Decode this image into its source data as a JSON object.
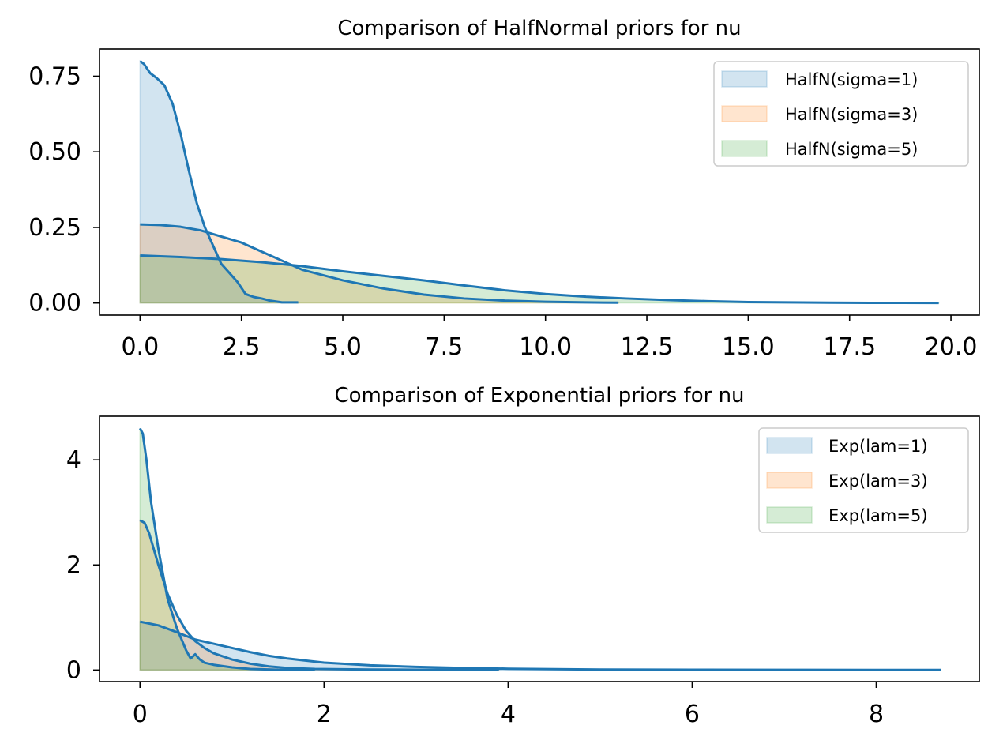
{
  "chart_data": [
    {
      "type": "area",
      "title": "Comparison of HalfNormal priors for nu",
      "xlabel": "",
      "ylabel": "",
      "xlim": [
        -1.0,
        20.7
      ],
      "ylim": [
        -0.04,
        0.84
      ],
      "xticks": [
        0,
        2.5,
        5,
        7.5,
        10,
        12.5,
        15,
        17.5,
        20
      ],
      "xtick_labels": [
        "0.0",
        "2.5",
        "5.0",
        "7.5",
        "10.0",
        "12.5",
        "15.0",
        "17.5",
        "20.0"
      ],
      "yticks": [
        0,
        0.25,
        0.5,
        0.75
      ],
      "ytick_labels": [
        "0.00",
        "0.25",
        "0.50",
        "0.75"
      ],
      "legend_position": "upper right",
      "line_color": "#1f77b4",
      "series": [
        {
          "name": "HalfN(sigma=1)",
          "fill": "#1f77b4",
          "x": [
            0,
            0.1,
            0.25,
            0.4,
            0.6,
            0.8,
            1.0,
            1.2,
            1.4,
            1.6,
            1.8,
            2.0,
            2.2,
            2.4,
            2.6,
            2.8,
            3.0,
            3.2,
            3.5,
            3.9
          ],
          "y": [
            0.8,
            0.79,
            0.76,
            0.745,
            0.72,
            0.66,
            0.56,
            0.44,
            0.33,
            0.25,
            0.19,
            0.13,
            0.1,
            0.07,
            0.03,
            0.02,
            0.015,
            0.008,
            0.002,
            0.002
          ]
        },
        {
          "name": "HalfN(sigma=3)",
          "fill": "#ff7f0e",
          "x": [
            0,
            0.5,
            1.0,
            1.5,
            2.0,
            2.5,
            3.0,
            3.5,
            4.0,
            5.0,
            6.0,
            7.0,
            8.0,
            9.0,
            10.0,
            11.0,
            11.8
          ],
          "y": [
            0.26,
            0.258,
            0.252,
            0.24,
            0.22,
            0.2,
            0.17,
            0.14,
            0.11,
            0.075,
            0.048,
            0.028,
            0.015,
            0.008,
            0.004,
            0.002,
            0.001
          ]
        },
        {
          "name": "HalfN(sigma=5)",
          "fill": "#2ca02c",
          "x": [
            0,
            1.0,
            2.0,
            3.0,
            4.0,
            5.0,
            6.0,
            7.0,
            8.0,
            9.0,
            10.0,
            11.0,
            12.0,
            13.0,
            14.0,
            15.0,
            16.0,
            17.0,
            18.0,
            19.7
          ],
          "y": [
            0.157,
            0.152,
            0.145,
            0.135,
            0.122,
            0.105,
            0.09,
            0.075,
            0.058,
            0.042,
            0.03,
            0.021,
            0.015,
            0.01,
            0.006,
            0.003,
            0.002,
            0.001,
            0.0005,
            0.0002
          ]
        }
      ]
    },
    {
      "type": "area",
      "title": "Comparison of Exponential priors for nu",
      "xlabel": "",
      "ylabel": "",
      "xlim": [
        -0.44,
        9.12
      ],
      "ylim": [
        -0.22,
        4.83
      ],
      "xticks": [
        0,
        2,
        4,
        6,
        8
      ],
      "xtick_labels": [
        "0",
        "2",
        "4",
        "6",
        "8"
      ],
      "yticks": [
        0,
        2,
        4
      ],
      "ytick_labels": [
        "0",
        "2",
        "4"
      ],
      "legend_position": "upper right",
      "line_color": "#1f77b4",
      "series": [
        {
          "name": "Exp(lam=1)",
          "fill": "#1f77b4",
          "x": [
            0,
            0.2,
            0.4,
            0.6,
            0.8,
            1.0,
            1.2,
            1.4,
            1.6,
            2.0,
            2.5,
            3.0,
            3.5,
            4.0,
            5.0,
            6.0,
            7.0,
            8.0,
            8.7
          ],
          "y": [
            0.92,
            0.85,
            0.72,
            0.58,
            0.5,
            0.42,
            0.34,
            0.27,
            0.22,
            0.14,
            0.09,
            0.06,
            0.04,
            0.025,
            0.01,
            0.005,
            0.003,
            0.002,
            0.001
          ]
        },
        {
          "name": "Exp(lam=3)",
          "fill": "#ff7f0e",
          "x": [
            0,
            0.05,
            0.1,
            0.2,
            0.3,
            0.4,
            0.5,
            0.6,
            0.7,
            0.8,
            1.0,
            1.2,
            1.4,
            1.6,
            1.9,
            2.5,
            3.0,
            3.9
          ],
          "y": [
            2.85,
            2.8,
            2.6,
            2.0,
            1.45,
            1.05,
            0.75,
            0.55,
            0.42,
            0.32,
            0.2,
            0.12,
            0.07,
            0.04,
            0.02,
            0.01,
            0.005,
            0.002
          ]
        },
        {
          "name": "Exp(lam=5)",
          "fill": "#2ca02c",
          "x": [
            0,
            0.03,
            0.07,
            0.12,
            0.2,
            0.3,
            0.4,
            0.5,
            0.55,
            0.6,
            0.65,
            0.7,
            0.8,
            1.0,
            1.2,
            1.5,
            1.9
          ],
          "y": [
            4.6,
            4.5,
            4.0,
            3.2,
            2.3,
            1.35,
            0.8,
            0.38,
            0.22,
            0.3,
            0.2,
            0.14,
            0.1,
            0.05,
            0.02,
            0.005,
            0.002
          ]
        }
      ]
    }
  ]
}
